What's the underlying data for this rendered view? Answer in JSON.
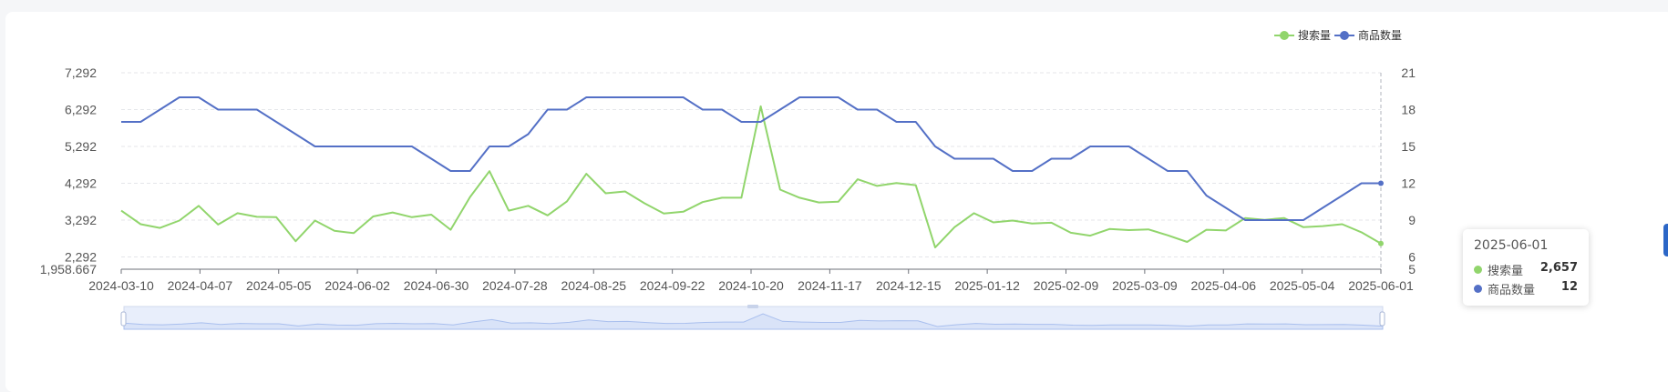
{
  "colors": {
    "search": "#91d56c",
    "products": "#5470c6",
    "grid": "#e4e6ea",
    "zoom_fill": "#d9e3f8"
  },
  "legend": [
    {
      "name": "搜索量",
      "color": "#91d56c"
    },
    {
      "name": "商品数量",
      "color": "#5470c6"
    }
  ],
  "tooltip": {
    "title": "2025-06-01",
    "rows": [
      {
        "name": "搜索量",
        "value": "2,657",
        "color": "#91d56c"
      },
      {
        "name": "商品数量",
        "value": "12",
        "color": "#5470c6"
      }
    ]
  },
  "chart_data": {
    "type": "line",
    "x_tick_labels": [
      "2024-03-10",
      "2024-04-07",
      "2024-05-05",
      "2024-06-02",
      "2024-06-30",
      "2024-07-28",
      "2024-08-25",
      "2024-09-22",
      "2024-10-20",
      "2024-11-17",
      "2024-12-15",
      "2025-01-12",
      "2025-02-09",
      "2025-03-09",
      "2025-04-06",
      "2025-05-04",
      "2025-06-01"
    ],
    "y_left_ticks": [
      "1,958.667",
      "2,292",
      "3,292",
      "4,292",
      "5,292",
      "6,292",
      "7,292"
    ],
    "y_left_range": [
      1958.667,
      7292
    ],
    "y_right_ticks": [
      "5",
      "6",
      "9",
      "12",
      "15",
      "18",
      "21"
    ],
    "y_right_range": [
      5,
      21
    ],
    "grid": true,
    "legend_position": "top-right",
    "x_start": "2024-03-10",
    "x_step_days": 7,
    "series": [
      {
        "name": "搜索量",
        "axis": "left",
        "color": "#91d56c",
        "values": [
          3550,
          3180,
          3080,
          3280,
          3680,
          3170,
          3480,
          3380,
          3370,
          2720,
          3280,
          3000,
          2940,
          3390,
          3500,
          3370,
          3440,
          3030,
          3920,
          4620,
          3550,
          3680,
          3420,
          3800,
          4550,
          4020,
          4070,
          3750,
          3470,
          3520,
          3780,
          3900,
          3900,
          6380,
          4120,
          3900,
          3770,
          3790,
          4400,
          4220,
          4300,
          4240,
          2550,
          3100,
          3480,
          3230,
          3280,
          3200,
          3220,
          2950,
          2870,
          3050,
          3020,
          3040,
          2880,
          2700,
          3030,
          3010,
          3350,
          3300,
          3350,
          3100,
          3130,
          3180,
          2960,
          2657
        ]
      },
      {
        "name": "商品数量",
        "axis": "right",
        "color": "#5470c6",
        "values": [
          17,
          17,
          18,
          19,
          19,
          18,
          18,
          18,
          17,
          16,
          15,
          15,
          15,
          15,
          15,
          15,
          14,
          13,
          13,
          15,
          15,
          16,
          18,
          18,
          19,
          19,
          19,
          19,
          19,
          19,
          18,
          18,
          17,
          17,
          18,
          19,
          19,
          19,
          18,
          18,
          17,
          17,
          15,
          14,
          14,
          14,
          13,
          13,
          14,
          14,
          15,
          15,
          15,
          14,
          13,
          13,
          11,
          10,
          9,
          9,
          9,
          9,
          10,
          11,
          12,
          12
        ]
      }
    ]
  }
}
